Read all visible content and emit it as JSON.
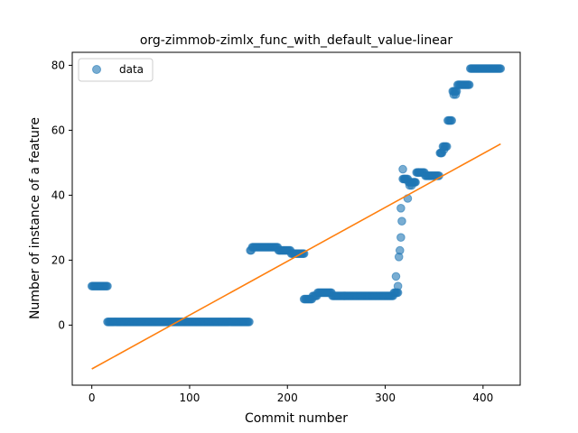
{
  "chart_data": {
    "type": "scatter",
    "title": "org-zimmob-zimlx_func_with_default_value-linear",
    "xlabel": "Commit number",
    "ylabel": "Number of instance of a feature",
    "xlim": [
      -20,
      438
    ],
    "ylim": [
      -18.5,
      84
    ],
    "xticks": [
      0,
      100,
      200,
      300,
      400
    ],
    "yticks": [
      0,
      20,
      40,
      60,
      80
    ],
    "grid": false,
    "legend_position": "top-left",
    "series": [
      {
        "name": "data",
        "kind": "points",
        "color": "#1f77b4",
        "segments": [
          {
            "x_start": 0,
            "x_end": 16,
            "y": 12
          },
          {
            "x_start": 16,
            "x_end": 161,
            "y": 1
          },
          {
            "x_start": 162,
            "x_end": 163,
            "y": 23
          },
          {
            "x_start": 164,
            "x_end": 190,
            "y": 24
          },
          {
            "x_start": 191,
            "x_end": 203,
            "y": 23
          },
          {
            "x_start": 204,
            "x_end": 217,
            "y": 22
          },
          {
            "x_start": 217,
            "x_end": 225,
            "y": 8
          },
          {
            "x_start": 226,
            "x_end": 230,
            "y": 9
          },
          {
            "x_start": 231,
            "x_end": 245,
            "y": 10
          },
          {
            "x_start": 246,
            "x_end": 308,
            "y": 9
          },
          {
            "x_start": 309,
            "x_end": 313,
            "y": 10
          },
          {
            "x_start": 318,
            "x_end": 323,
            "y": 45
          },
          {
            "x_start": 324,
            "x_end": 331,
            "y": 44
          },
          {
            "x_start": 332,
            "x_end": 340,
            "y": 47
          },
          {
            "x_start": 341,
            "x_end": 355,
            "y": 46
          },
          {
            "x_start": 356,
            "x_end": 358,
            "y": 53
          },
          {
            "x_start": 359,
            "x_end": 363,
            "y": 55
          },
          {
            "x_start": 364,
            "x_end": 368,
            "y": 63
          },
          {
            "x_start": 369,
            "x_end": 373,
            "y": 72
          },
          {
            "x_start": 374,
            "x_end": 386,
            "y": 74
          },
          {
            "x_start": 387,
            "x_end": 418,
            "y": 79
          }
        ],
        "points": [
          [
            311,
            15
          ],
          [
            313,
            12
          ],
          [
            314,
            21
          ],
          [
            315,
            23
          ],
          [
            316,
            27
          ],
          [
            317,
            32
          ],
          [
            316,
            36
          ],
          [
            318,
            48
          ],
          [
            320,
            45
          ],
          [
            323,
            39
          ],
          [
            325,
            43
          ],
          [
            327,
            43
          ],
          [
            330,
            44
          ],
          [
            334,
            47
          ],
          [
            370,
            71
          ],
          [
            372,
            71
          ],
          [
            357,
            53
          ],
          [
            360,
            54
          ]
        ]
      },
      {
        "name": "",
        "kind": "line",
        "color": "#ff7f0e",
        "x": [
          0,
          418
        ],
        "y": [
          -13.5,
          55.8
        ]
      }
    ]
  }
}
